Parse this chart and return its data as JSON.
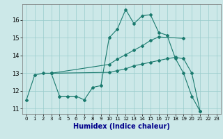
{
  "xlabel": "Humidex (Indice chaleur)",
  "bg_color": "#cce8e8",
  "grid_color": "#99cccc",
  "line_color": "#1a7a6e",
  "xlim": [
    -0.5,
    23.5
  ],
  "ylim": [
    10.7,
    16.9
  ],
  "yticks": [
    11,
    12,
    13,
    14,
    15,
    16
  ],
  "xticks": [
    0,
    1,
    2,
    3,
    4,
    5,
    6,
    7,
    8,
    9,
    10,
    11,
    12,
    13,
    14,
    15,
    16,
    17,
    18,
    19,
    20,
    21,
    22,
    23
  ],
  "line1_x": [
    0,
    1,
    2,
    3,
    4,
    5,
    6,
    7,
    8,
    9,
    10,
    11,
    12,
    13,
    14,
    15,
    16,
    17,
    18,
    19,
    20,
    21
  ],
  "line1_y": [
    11.5,
    12.9,
    13.0,
    13.0,
    11.7,
    11.7,
    11.7,
    11.5,
    12.2,
    12.3,
    15.0,
    15.5,
    16.6,
    15.8,
    16.25,
    16.3,
    15.3,
    15.15,
    13.85,
    13.0,
    11.7,
    10.85
  ],
  "line2_x": [
    3,
    10,
    11,
    12,
    13,
    14,
    15,
    16,
    19
  ],
  "line2_y": [
    13.0,
    13.5,
    13.8,
    14.05,
    14.3,
    14.55,
    14.85,
    15.05,
    14.97
  ],
  "line3_x": [
    3,
    10,
    11,
    12,
    13,
    14,
    15,
    16,
    17,
    18,
    19,
    20,
    21
  ],
  "line3_y": [
    13.0,
    13.05,
    13.15,
    13.25,
    13.42,
    13.52,
    13.62,
    13.72,
    13.82,
    13.9,
    13.82,
    13.0,
    10.85
  ],
  "xlabel_color": "#00008b",
  "xlabel_fontsize": 7,
  "tick_fontsize": 5,
  "marker_size": 2.0,
  "linewidth": 0.8
}
